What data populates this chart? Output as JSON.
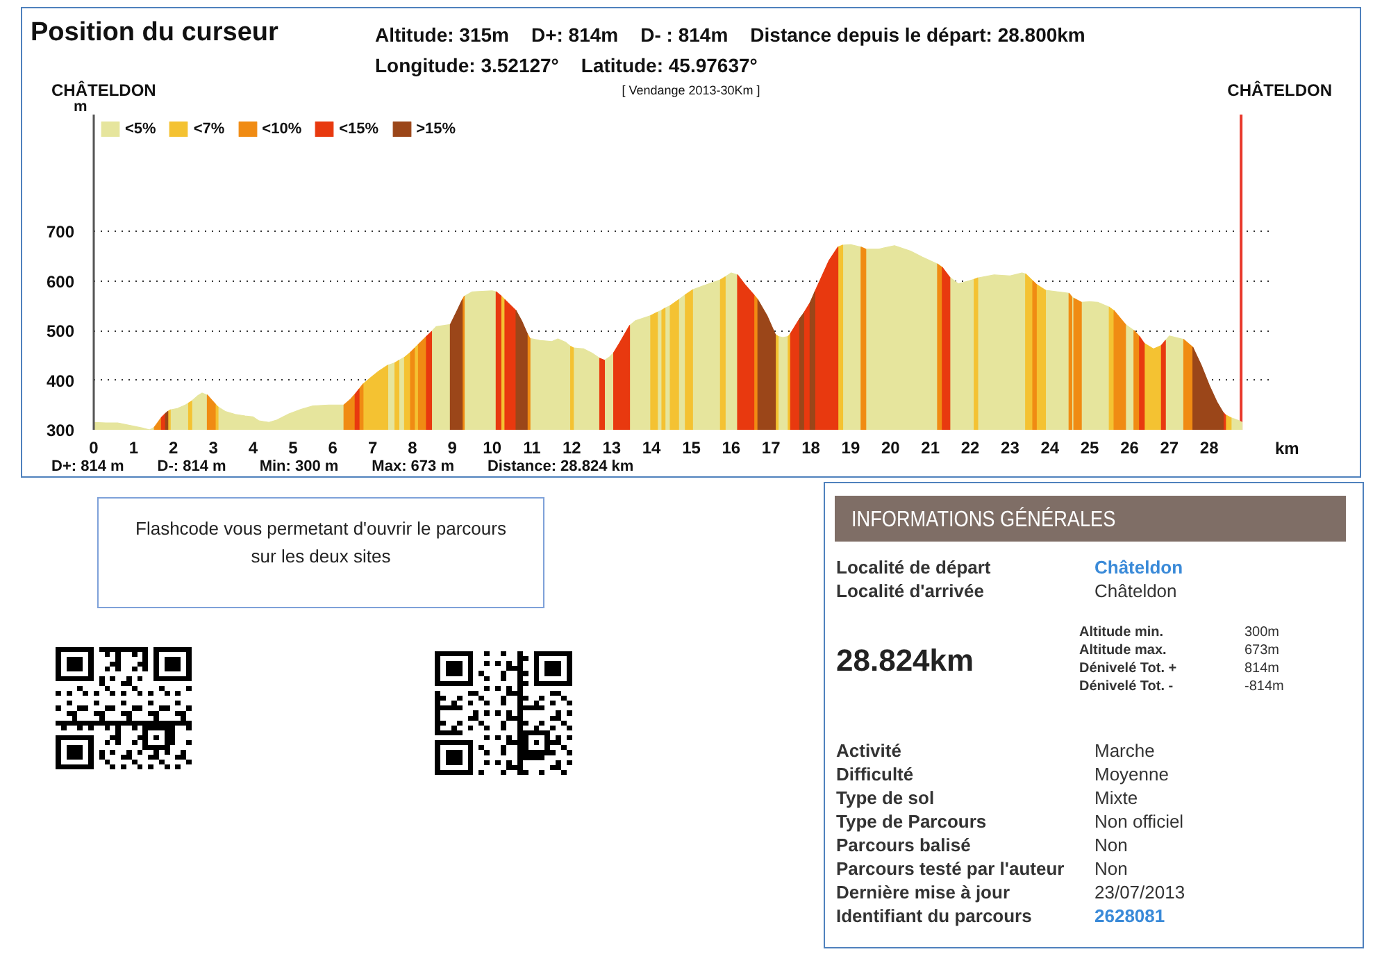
{
  "chart_data": [
    {
      "type": "area",
      "title": "Position du curseur",
      "subtitle": "[ Vendange 2013-30Km ]",
      "annotations": [
        "Altitude: 315m",
        "D+: 814m",
        "D- : 814m",
        "Distance depuis le départ: 28.800km",
        "Longitude: 3.52127°",
        "Latitude: 45.97637°",
        "CHÂTELDON",
        "CHÂTELDON",
        "D+: 814 m",
        "D-: 814 m",
        "Min: 300 m",
        "Max: 673 m",
        "Distance: 28.824 km"
      ],
      "xlabel": "km",
      "ylabel": "m",
      "xlim": [
        0,
        29.6
      ],
      "ylim": [
        300,
        935
      ],
      "xticks": [
        0,
        1,
        2,
        3,
        4,
        5,
        6,
        7,
        8,
        9,
        10,
        11,
        12,
        13,
        14,
        15,
        16,
        17,
        18,
        19,
        20,
        21,
        22,
        23,
        24,
        25,
        26,
        27,
        28
      ],
      "yticks": [
        300,
        400,
        500,
        600,
        700
      ],
      "grid": "y",
      "legend": "top left",
      "ref_lines": [
        {
          "axis": "x",
          "value": 28.8,
          "color": "#e8392c"
        }
      ],
      "series": [
        {
          "name": "<5%",
          "color": "#e6e59d",
          "x": [
            0,
            0.3,
            0.6,
            0.9,
            1.2,
            1.4,
            1.52,
            null,
            1.92,
            2.1,
            2.3,
            2.38,
            null,
            2.46,
            2.6,
            2.72,
            2.85,
            null,
            3.12,
            3.3,
            3.55,
            3.8,
            4.0,
            4.15,
            4.4,
            4.6,
            4.9,
            5.2,
            5.5,
            5.9,
            6.28,
            null,
            7.38,
            7.56,
            null,
            7.66,
            7.8,
            null,
            8.48,
            8.6,
            8.95,
            null,
            9.3,
            9.5,
            10.0,
            10.1,
            null,
            10.95,
            11.2,
            11.5,
            11.65,
            11.85,
            11.97,
            null,
            12.04,
            12.3,
            12.5,
            12.7,
            null,
            12.82,
            12.95,
            13.05,
            null,
            13.45,
            13.6,
            13.98,
            null,
            14.15,
            14.26,
            null,
            14.34,
            14.47,
            null,
            14.68,
            14.85,
            null,
            15.03,
            15.3,
            15.73,
            null,
            15.85,
            16.0,
            16.16,
            null,
            17.18,
            17.3,
            17.43,
            null,
            18.8,
            19.0,
            19.26,
            null,
            19.38,
            19.7,
            20.1,
            20.5,
            20.8,
            21.18,
            null,
            21.49,
            21.7,
            22.1,
            null,
            22.19,
            22.6,
            23.0,
            23.3,
            23.39,
            null,
            23.89,
            24.2,
            24.48,
            null,
            24.55,
            24.6,
            null,
            24.79,
            25.0,
            25.2,
            25.49,
            null,
            25.9,
            26.11,
            null,
            26.9,
            27.0,
            27.36,
            null,
            28.55,
            28.7,
            28.824
          ],
          "values": [
            315,
            314,
            314,
            309,
            304,
            300,
            305,
            null,
            340,
            343,
            350,
            354,
            null,
            358,
            368,
            374,
            370,
            null,
            346,
            337,
            331,
            328,
            326,
            318,
            315,
            320,
            332,
            341,
            348,
            350,
            350,
            null,
            430,
            435,
            null,
            440,
            446,
            null,
            498,
            508,
            512,
            null,
            569,
            578,
            580,
            578,
            null,
            484,
            480,
            478,
            483,
            476,
            468,
            null,
            465,
            463,
            455,
            444,
            null,
            440,
            447,
            455,
            null,
            510,
            520,
            530,
            null,
            537,
            541,
            null,
            545,
            550,
            null,
            562,
            572,
            null,
            582,
            590,
            602,
            null,
            608,
            616,
            612,
            null,
            488,
            486,
            488,
            null,
            672,
            673,
            668,
            null,
            664,
            664,
            671,
            660,
            648,
            634,
            null,
            607,
            594,
            603,
            null,
            606,
            612,
            610,
            616,
            614,
            null,
            581,
            578,
            575,
            null,
            568,
            565,
            null,
            557,
            558,
            557,
            547,
            null,
            512,
            500,
            null,
            480,
            489,
            482,
            null,
            324,
            320,
            315
          ]
        },
        {
          "name": "<7%",
          "color": "#f4c232",
          "x": [
            1.86,
            1.92,
            null,
            2.38,
            2.46,
            null,
            3.05,
            3.12,
            null,
            6.76,
            6.95,
            7.15,
            7.38,
            null,
            7.56,
            7.66,
            null,
            7.8,
            7.95,
            null,
            8.05,
            8.15,
            null,
            10.22,
            10.32,
            null,
            11.97,
            12.04,
            null,
            13.98,
            14.15,
            null,
            14.26,
            14.34,
            null,
            14.47,
            14.68,
            null,
            14.85,
            15.03,
            null,
            15.73,
            15.85,
            null,
            17.11,
            17.18,
            null,
            17.43,
            17.49,
            null,
            18.68,
            18.8,
            null,
            22.1,
            22.19,
            null,
            23.39,
            23.57,
            null,
            23.66,
            23.89,
            null,
            25.49,
            25.61,
            null,
            26.37,
            26.6,
            26.8,
            null,
            28.41,
            28.55
          ],
          "values": [
            337,
            340,
            null,
            354,
            358,
            null,
            352,
            346,
            null,
            392,
            405,
            418,
            430,
            null,
            435,
            440,
            null,
            446,
            456,
            null,
            464,
            472,
            null,
            570,
            562,
            null,
            468,
            465,
            null,
            530,
            537,
            null,
            541,
            545,
            null,
            550,
            562,
            null,
            572,
            582,
            null,
            602,
            608,
            null,
            492,
            488,
            null,
            488,
            494,
            null,
            668,
            672,
            null,
            603,
            606,
            null,
            614,
            600,
            null,
            593,
            581,
            null,
            547,
            540,
            null,
            474,
            463,
            470,
            null,
            330,
            324
          ]
        },
        {
          "name": "<10%",
          "color": "#f08b13",
          "x": [
            1.52,
            1.7,
            null,
            2.85,
            3.05,
            null,
            6.28,
            6.45,
            6.56,
            null,
            6.66,
            6.76,
            null,
            7.95,
            8.05,
            null,
            8.15,
            8.35,
            null,
            9.25,
            9.3,
            null,
            10.88,
            10.95,
            null,
            16.57,
            16.67,
            null,
            19.26,
            19.38,
            null,
            21.18,
            21.3,
            null,
            23.57,
            23.66,
            null,
            24.48,
            24.55,
            null,
            24.6,
            24.79,
            null,
            25.61,
            25.9,
            null,
            26.11,
            26.25,
            null,
            27.36,
            27.59
          ],
          "values": [
            305,
            325,
            null,
            370,
            352,
            null,
            350,
            362,
            372,
            null,
            382,
            392,
            null,
            456,
            464,
            null,
            472,
            488,
            null,
            562,
            569,
            null,
            494,
            484,
            null,
            572,
            562,
            null,
            668,
            664,
            null,
            634,
            627,
            null,
            600,
            593,
            null,
            575,
            568,
            null,
            565,
            557,
            null,
            540,
            512,
            null,
            500,
            488,
            null,
            482,
            466
          ]
        },
        {
          "name": "<15%",
          "color": "#e8390f",
          "x": [
            1.7,
            1.8,
            null,
            6.56,
            6.66,
            null,
            8.35,
            8.48,
            null,
            10.1,
            10.22,
            null,
            10.32,
            10.6,
            null,
            12.7,
            12.82,
            null,
            13.05,
            13.2,
            13.45,
            null,
            16.16,
            16.35,
            16.57,
            null,
            17.49,
            17.72,
            null,
            17.82,
            17.98,
            null,
            18.1,
            18.45,
            18.68,
            null,
            21.3,
            21.49,
            null,
            26.25,
            26.37,
            null,
            26.8,
            26.9,
            null,
            28.35,
            28.41
          ],
          "values": [
            325,
            333,
            null,
            372,
            382,
            null,
            488,
            498,
            null,
            578,
            570,
            null,
            562,
            540,
            null,
            444,
            440,
            null,
            455,
            475,
            510,
            null,
            612,
            592,
            572,
            null,
            494,
            524,
            null,
            535,
            556,
            null,
            578,
            640,
            668,
            null,
            627,
            607,
            null,
            488,
            474,
            null,
            470,
            480,
            null,
            335,
            330
          ]
        },
        {
          "name": ">15%",
          "color": "#9b4619",
          "x": [
            1.8,
            1.86,
            null,
            8.95,
            9.12,
            9.25,
            null,
            10.6,
            10.75,
            10.88,
            null,
            16.67,
            16.9,
            17.11,
            null,
            17.72,
            17.82,
            null,
            17.98,
            18.1,
            null,
            27.59,
            27.8,
            28.0,
            28.2,
            28.35
          ],
          "values": [
            333,
            337,
            null,
            512,
            540,
            562,
            null,
            540,
            518,
            494,
            null,
            562,
            530,
            492,
            null,
            524,
            535,
            null,
            556,
            578,
            null,
            466,
            430,
            390,
            355,
            335
          ]
        }
      ]
    },
    {
      "type": "other",
      "annotations": [
        "Flashcode vous permetant d'ouvrir le parcours sur les deux sites"
      ]
    },
    {
      "type": "other",
      "title": "INFORMATIONS GÉNÉRALES",
      "annotations": [
        "Localité de départ",
        "Châteldon",
        "Localité d'arrivée",
        "Châteldon",
        "28.824km",
        "Altitude min.",
        "300m",
        "Altitude max.",
        "673m",
        "Dénivelé Tot. +",
        "814m",
        "Dénivelé Tot. -",
        "-814m",
        "Activité",
        "Marche",
        "Difficulté",
        "Moyenne",
        "Type de sol",
        "Mixte",
        "Type de Parcours",
        "Non officiel",
        "Parcours balisé",
        "Non",
        "Parcours testé par l'auteur",
        "Non",
        "Dernière mise à jour",
        "23/07/2013",
        "Identifiant du parcours",
        "2628081"
      ]
    }
  ]
}
